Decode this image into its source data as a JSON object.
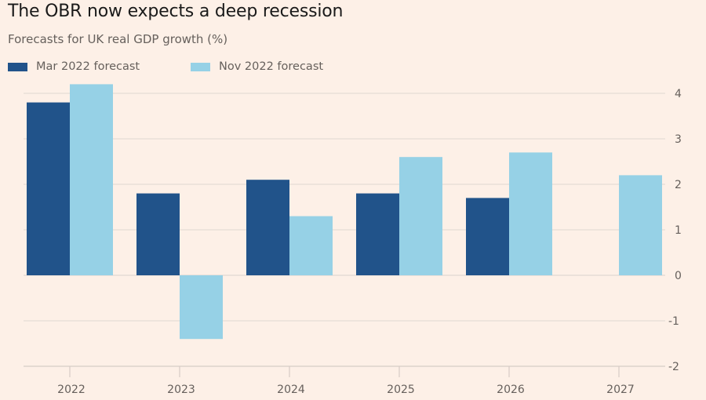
{
  "colors": {
    "background": "#fdf0e7",
    "mar": "#21538a",
    "nov": "#96d1e6",
    "grid": "#e5dcd6",
    "axis_text": "#66605c"
  },
  "chart_data": {
    "type": "bar",
    "title": "The OBR now expects a deep recession",
    "subtitle": "Forecasts for UK real GDP growth (%)",
    "xlabel": "",
    "ylabel": "",
    "categories": [
      "2022",
      "2023",
      "2024",
      "2025",
      "2026",
      "2027"
    ],
    "series": [
      {
        "name": "Mar 2022 forecast",
        "color": "#21538a",
        "values": [
          3.8,
          1.8,
          2.1,
          1.8,
          1.7,
          null
        ]
      },
      {
        "name": "Nov 2022 forecast",
        "color": "#96d1e6",
        "values": [
          4.2,
          -1.4,
          1.3,
          2.6,
          2.7,
          2.2
        ]
      }
    ],
    "ylim": [
      -2,
      4
    ],
    "yticks": [
      "4",
      "3",
      "2",
      "1",
      "0",
      "-1",
      "-2"
    ],
    "ytick_values": [
      4,
      3,
      2,
      1,
      0,
      -1,
      -2
    ],
    "y_axis_side": "right",
    "grid": true,
    "legend_position": "top-left"
  }
}
